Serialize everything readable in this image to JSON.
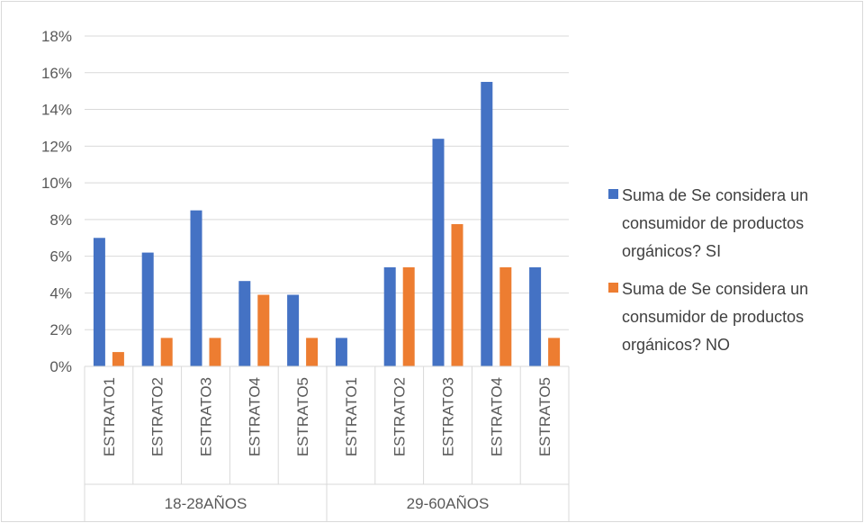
{
  "chart_data": {
    "type": "bar",
    "title": "",
    "xlabel": "",
    "ylabel": "",
    "ylim": [
      0,
      18
    ],
    "ytick_step": 2,
    "ytick_suffix": "%",
    "grid": true,
    "legend_position": "right",
    "groups": [
      {
        "label": "18-28AÑOS",
        "categories": [
          "ESTRATO1",
          "ESTRATO2",
          "ESTRATO3",
          "ESTRATO4",
          "ESTRATO5"
        ]
      },
      {
        "label": "29-60AÑOS",
        "categories": [
          "ESTRATO1",
          "ESTRATO2",
          "ESTRATO3",
          "ESTRATO4",
          "ESTRATO5"
        ]
      }
    ],
    "series": [
      {
        "name": "Suma de Se considera un consumidor de productos orgánicos? SI",
        "legend_lines": [
          "Suma de Se considera un",
          "consumidor de productos",
          "orgánicos? SI"
        ],
        "color": "#4472c4",
        "values": [
          7.0,
          6.2,
          8.5,
          4.65,
          3.9,
          1.55,
          5.4,
          12.4,
          15.5,
          5.4
        ]
      },
      {
        "name": "Suma de Se considera un consumidor de productos orgánicos? NO",
        "legend_lines": [
          "Suma de Se considera un",
          "consumidor de productos",
          "orgánicos? NO"
        ],
        "color": "#ed7d31",
        "values": [
          0.78,
          1.55,
          1.55,
          3.9,
          1.55,
          0,
          5.4,
          7.75,
          5.4,
          1.55
        ]
      }
    ]
  }
}
